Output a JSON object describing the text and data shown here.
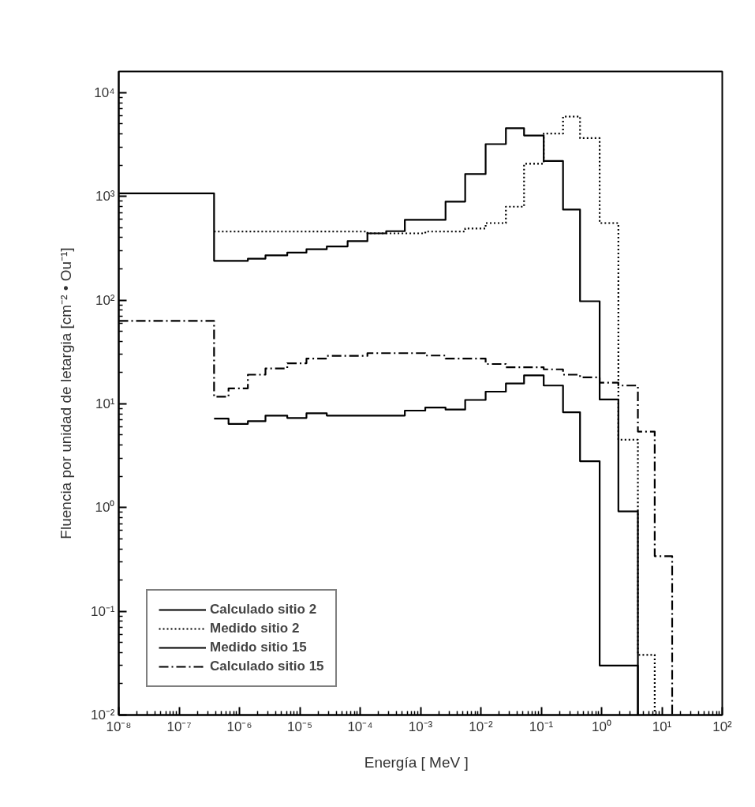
{
  "chart_data": {
    "type": "step",
    "xlabel": "Energía   [ MeV ]",
    "ylabel": "Fluencia por unidad de letargia [cm⁻² • Ou⁻¹]",
    "log": "xy",
    "grid": false,
    "legend": "bottom left",
    "xlim": [
      1e-08,
      100
    ],
    "ylim": [
      0.01,
      16000
    ],
    "xticks": [
      {
        "value": 1e-08,
        "label": "10⁻⁸"
      },
      {
        "value": 1e-07,
        "label": "10⁻⁷"
      },
      {
        "value": 1e-06,
        "label": "10⁻⁶"
      },
      {
        "value": 1e-05,
        "label": "10⁻⁵"
      },
      {
        "value": 0.0001,
        "label": "10⁻⁴"
      },
      {
        "value": 0.001,
        "label": "10⁻³"
      },
      {
        "value": 0.01,
        "label": "10⁻²"
      },
      {
        "value": 0.1,
        "label": "10⁻¹"
      },
      {
        "value": 1,
        "label": "10⁰"
      },
      {
        "value": 10,
        "label": "10¹"
      },
      {
        "value": 100,
        "label": "10²"
      }
    ],
    "yticks": [
      {
        "value": 0.01,
        "label": "10⁻²"
      },
      {
        "value": 0.1,
        "label": "10⁻¹"
      },
      {
        "value": 1,
        "label": "10⁰"
      },
      {
        "value": 10,
        "label": "10¹"
      },
      {
        "value": 100,
        "label": "10²"
      },
      {
        "value": 1000,
        "label": "10³"
      },
      {
        "value": 10000,
        "label": "10⁴"
      }
    ],
    "series": [
      {
        "name": "Calculado sitio 2",
        "color": "#000000",
        "line_style": "solid",
        "x": [
          1e-08,
          3.8e-07,
          6.6e-07,
          1.38e-06,
          2.7e-06,
          6.2e-06,
          1.29e-05,
          2.8e-05,
          6.2e-05,
          0.000132,
          0.00027,
          0.00055,
          0.0012,
          0.0026,
          0.0055,
          0.012,
          0.026,
          0.052,
          0.11,
          0.23,
          0.44,
          0.93,
          1.9,
          4.0
        ],
        "values": [
          1070,
          239,
          239,
          251,
          270,
          287,
          309,
          329,
          370,
          440,
          462,
          594,
          594,
          890,
          1640,
          3190,
          4540,
          3860,
          2190,
          745,
          97.5,
          11,
          0.92,
          0.01
        ]
      },
      {
        "name": "Medido sitio 2",
        "color": "#000000",
        "line_style": "dotted",
        "x": [
          3.8e-07,
          6.6e-07,
          1.38e-06,
          2.7e-06,
          6.2e-06,
          1.29e-05,
          2.8e-05,
          6.2e-05,
          0.000132,
          0.00027,
          0.00055,
          0.0012,
          0.0026,
          0.0055,
          0.012,
          0.026,
          0.052,
          0.11,
          0.23,
          0.44,
          0.93,
          1.9,
          4.0,
          7.6
        ],
        "values": [
          458,
          458,
          458,
          458,
          458,
          458,
          458,
          458,
          440,
          440,
          440,
          458,
          458,
          490,
          553,
          795,
          2060,
          4030,
          5880,
          3640,
          553,
          4.5,
          0.038,
          0.01
        ]
      },
      {
        "name": "Medido sitio 15",
        "color": "#000000",
        "line_style": "solid",
        "x": [
          3.8e-07,
          6.6e-07,
          1.38e-06,
          2.7e-06,
          6.2e-06,
          1.29e-05,
          2.8e-05,
          6.2e-05,
          0.000132,
          0.00027,
          0.00055,
          0.0012,
          0.0026,
          0.0055,
          0.012,
          0.026,
          0.052,
          0.11,
          0.23,
          0.44,
          0.93,
          1.9,
          4.0
        ],
        "values": [
          7.2,
          6.4,
          6.8,
          7.7,
          7.3,
          8.1,
          7.7,
          7.7,
          7.7,
          7.7,
          8.6,
          9.2,
          8.8,
          10.9,
          13.1,
          15.7,
          18.8,
          15,
          8.3,
          2.8,
          0.03,
          0.03,
          0.01
        ]
      },
      {
        "name": "Calculado sitio 15",
        "color": "#000000",
        "line_style": "dashdot",
        "x": [
          1e-08,
          3.8e-07,
          6.6e-07,
          1.38e-06,
          2.7e-06,
          6.2e-06,
          1.29e-05,
          2.8e-05,
          6.2e-05,
          0.000132,
          0.00027,
          0.00055,
          0.0012,
          0.0026,
          0.0055,
          0.012,
          0.026,
          0.052,
          0.11,
          0.23,
          0.44,
          0.93,
          1.9,
          4.0,
          7.6,
          14.8
        ],
        "values": [
          63,
          11.7,
          14.1,
          19.1,
          21.9,
          24.6,
          27.3,
          29,
          29,
          30.8,
          30.8,
          30.8,
          29.2,
          27.3,
          27.3,
          24.2,
          22.5,
          22.5,
          21.5,
          19.1,
          18,
          16,
          15,
          5.4,
          0.34,
          0.01
        ]
      }
    ]
  }
}
